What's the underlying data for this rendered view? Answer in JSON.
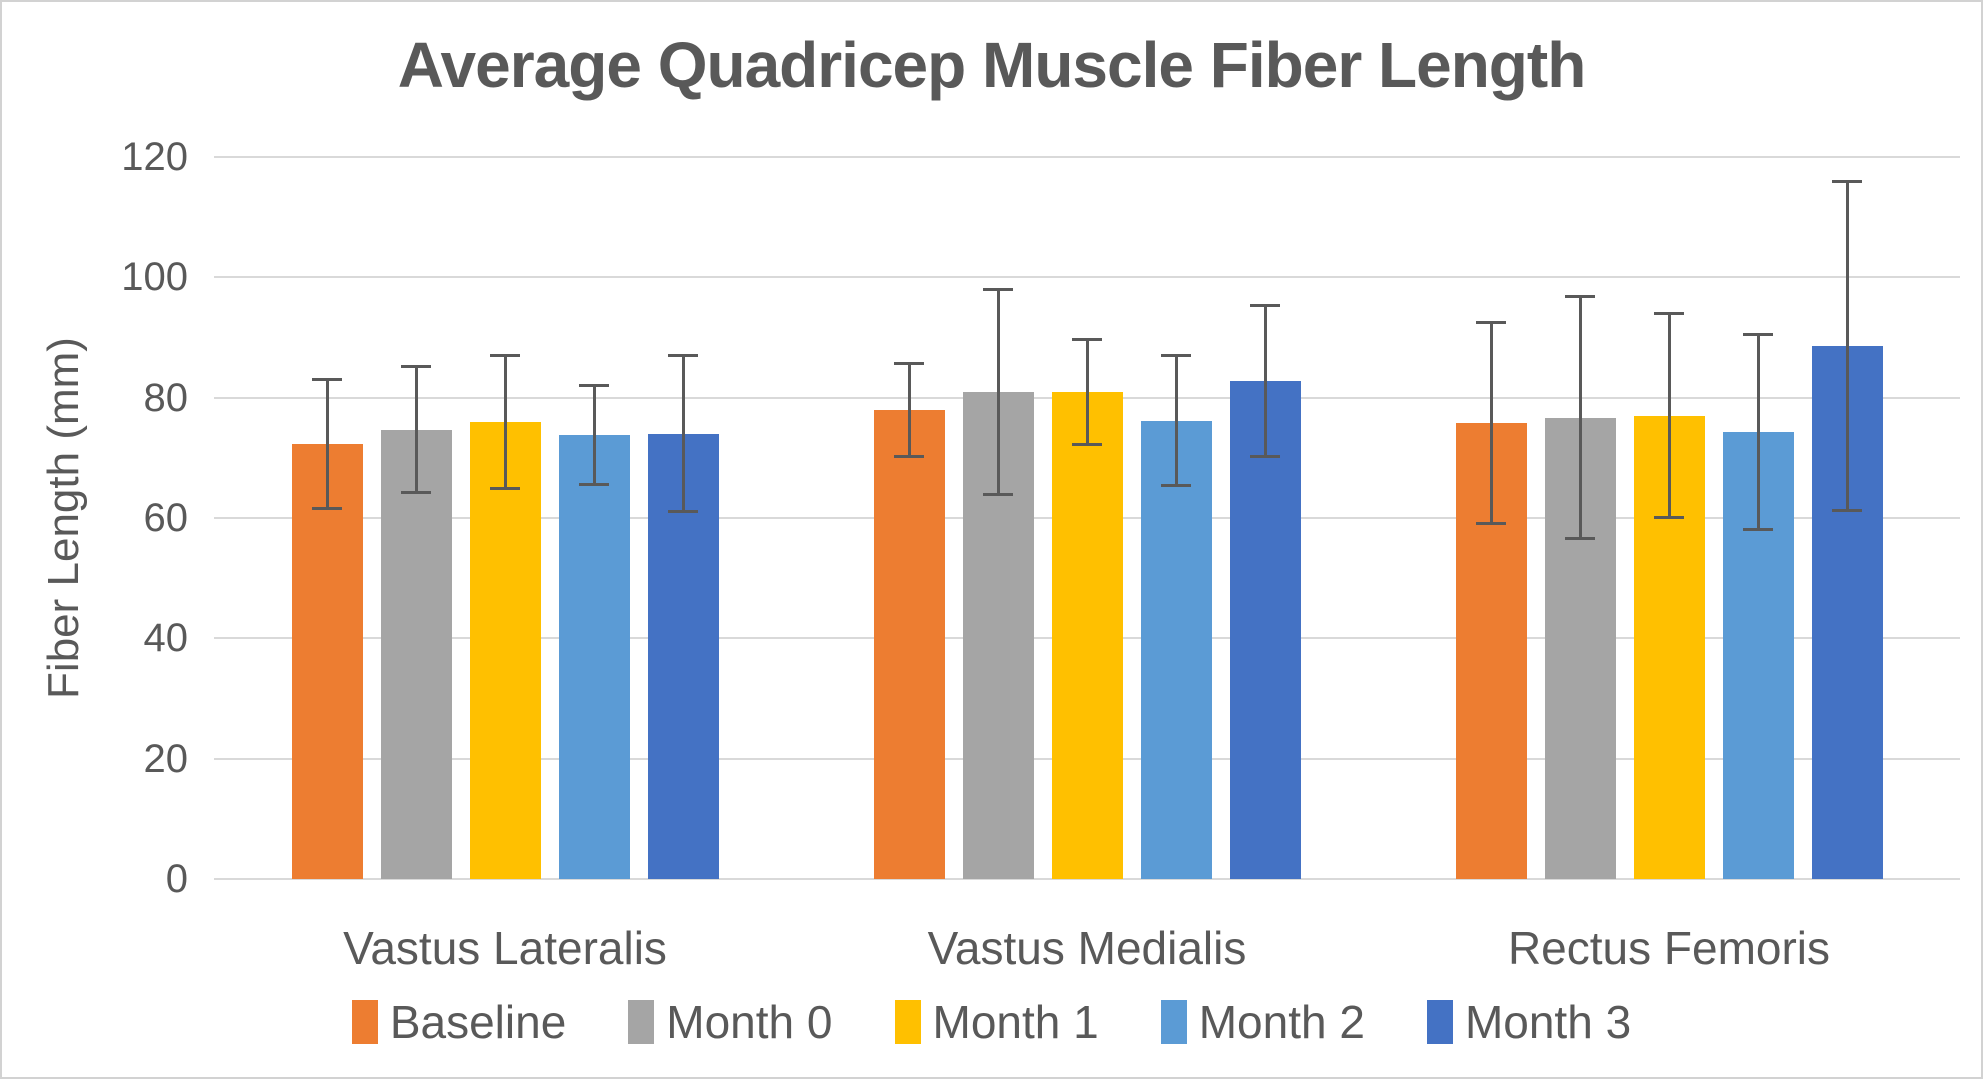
{
  "frame": {
    "background": "#ffffff",
    "border_color": "#d2d2d2"
  },
  "chart_data": {
    "type": "bar",
    "title": "Average Quadricep Muscle Fiber Length",
    "xlabel": "",
    "ylabel": "Fiber Length (mm)",
    "ylim": [
      0,
      120
    ],
    "yticks": [
      0,
      20,
      40,
      60,
      80,
      100,
      120
    ],
    "grid": true,
    "legend_position": "bottom",
    "text_color": "#595959",
    "gridline_color": "#d9d9d9",
    "error_bar_color": "#595959",
    "categories": [
      "Vastus Lateralis",
      "Vastus Medialis",
      "Rectus Femoris"
    ],
    "series": [
      {
        "name": "Baseline",
        "color": "#ED7D31",
        "values": [
          72.3,
          78.0,
          75.8
        ],
        "errors": [
          11.0,
          8.0,
          17.0
        ]
      },
      {
        "name": "Month 0",
        "color": "#A5A5A5",
        "values": [
          74.7,
          81.0,
          76.7
        ],
        "errors": [
          10.7,
          17.3,
          20.4
        ]
      },
      {
        "name": "Month 1",
        "color": "#FFC000",
        "values": [
          76.0,
          81.0,
          77.0
        ],
        "errors": [
          11.3,
          9.0,
          17.2
        ]
      },
      {
        "name": "Month 2",
        "color": "#5B9BD5",
        "values": [
          73.8,
          76.2,
          74.3
        ],
        "errors": [
          8.4,
          11.0,
          16.4
        ]
      },
      {
        "name": "Month 3",
        "color": "#4472C4",
        "values": [
          74.0,
          82.8,
          88.6
        ],
        "errors": [
          13.2,
          12.8,
          27.6
        ]
      }
    ]
  }
}
